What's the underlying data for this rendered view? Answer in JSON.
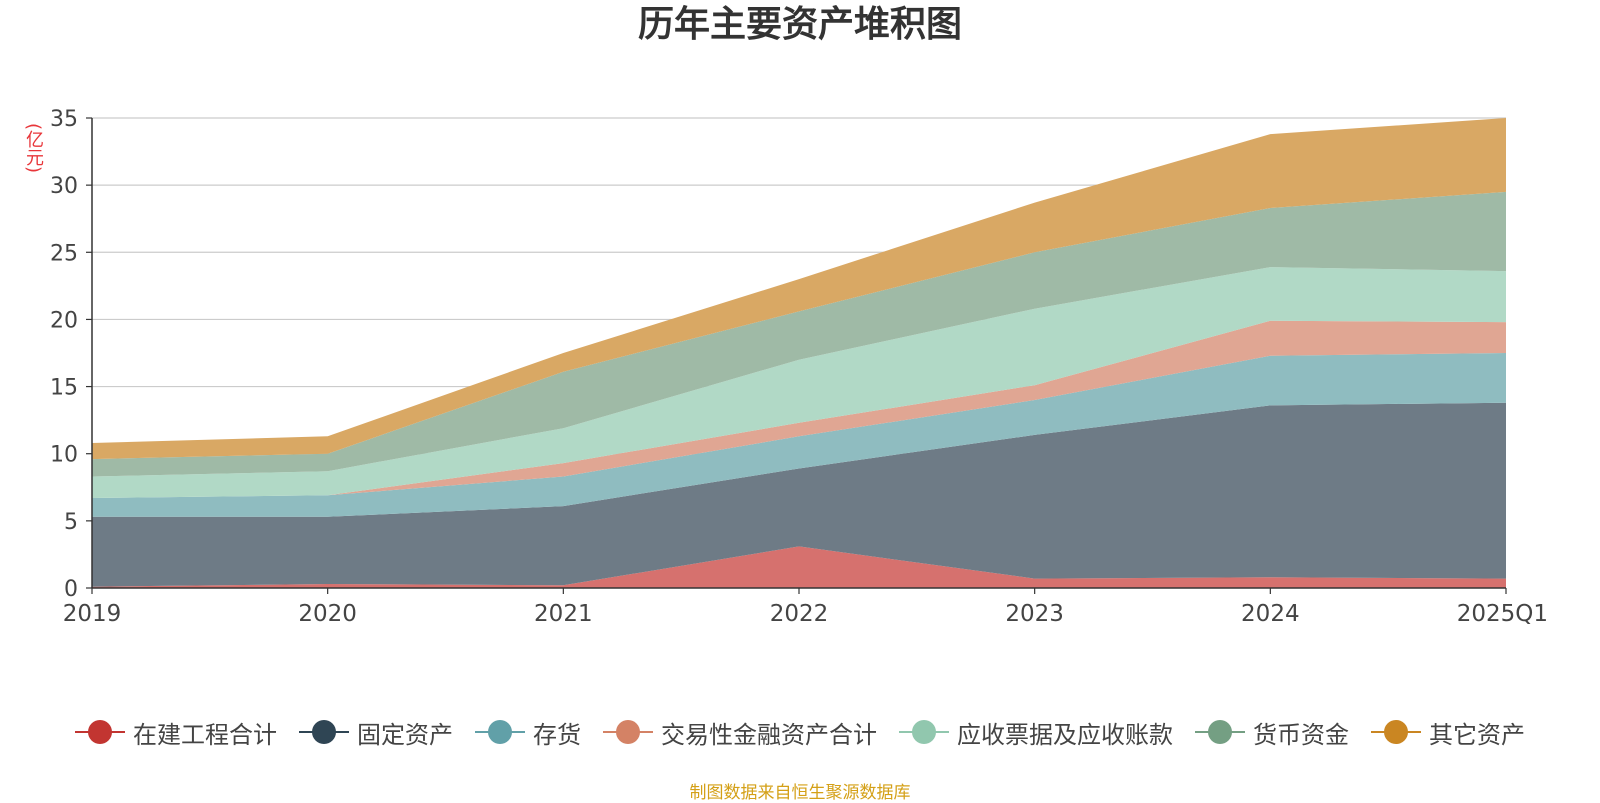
{
  "title": "历年主要资产堆积图",
  "source_note": "制图数据来自恒生聚源数据库",
  "chart_data": {
    "type": "area",
    "stacked": true,
    "title": "历年主要资产堆积图",
    "ylabel": "(亿元)",
    "xlabel": "",
    "categories": [
      "2019",
      "2020",
      "2021",
      "2022",
      "2023",
      "2024",
      "2025Q1"
    ],
    "ylim": [
      0,
      35
    ],
    "yticks": [
      0,
      5,
      10,
      15,
      20,
      25,
      30,
      35
    ],
    "grid": true,
    "legend_position": "bottom",
    "series": [
      {
        "name": "在建工程合计",
        "color": "#c23531",
        "fill": "#d6716e",
        "values": [
          0.1,
          0.3,
          0.2,
          3.1,
          0.7,
          0.8,
          0.7
        ]
      },
      {
        "name": "固定资产",
        "color": "#2f4554",
        "fill": "#6e7b86",
        "values": [
          5.2,
          5.0,
          5.9,
          5.8,
          10.7,
          12.8,
          13.1
        ]
      },
      {
        "name": "存货",
        "color": "#61a0a8",
        "fill": "#8fbcc0",
        "values": [
          1.4,
          1.6,
          2.2,
          2.4,
          2.6,
          3.7,
          3.7
        ]
      },
      {
        "name": "交易性金融资产合计",
        "color": "#d48265",
        "fill": "#e0a693",
        "values": [
          0.0,
          0.0,
          1.0,
          1.0,
          1.1,
          2.6,
          2.3
        ]
      },
      {
        "name": "应收票据及应收账款",
        "color": "#91c7ae",
        "fill": "#b1d9c6",
        "values": [
          1.6,
          1.8,
          2.6,
          4.7,
          5.7,
          4.0,
          3.8
        ]
      },
      {
        "name": "货币资金",
        "color": "#749f83",
        "fill": "#9fbaa6",
        "values": [
          1.3,
          1.3,
          4.2,
          3.6,
          4.2,
          4.4,
          5.9
        ]
      },
      {
        "name": "其它资产",
        "color": "#ca8622",
        "fill": "#d9a864",
        "values": [
          1.2,
          1.3,
          1.4,
          2.4,
          3.7,
          5.5,
          5.5
        ]
      }
    ]
  }
}
